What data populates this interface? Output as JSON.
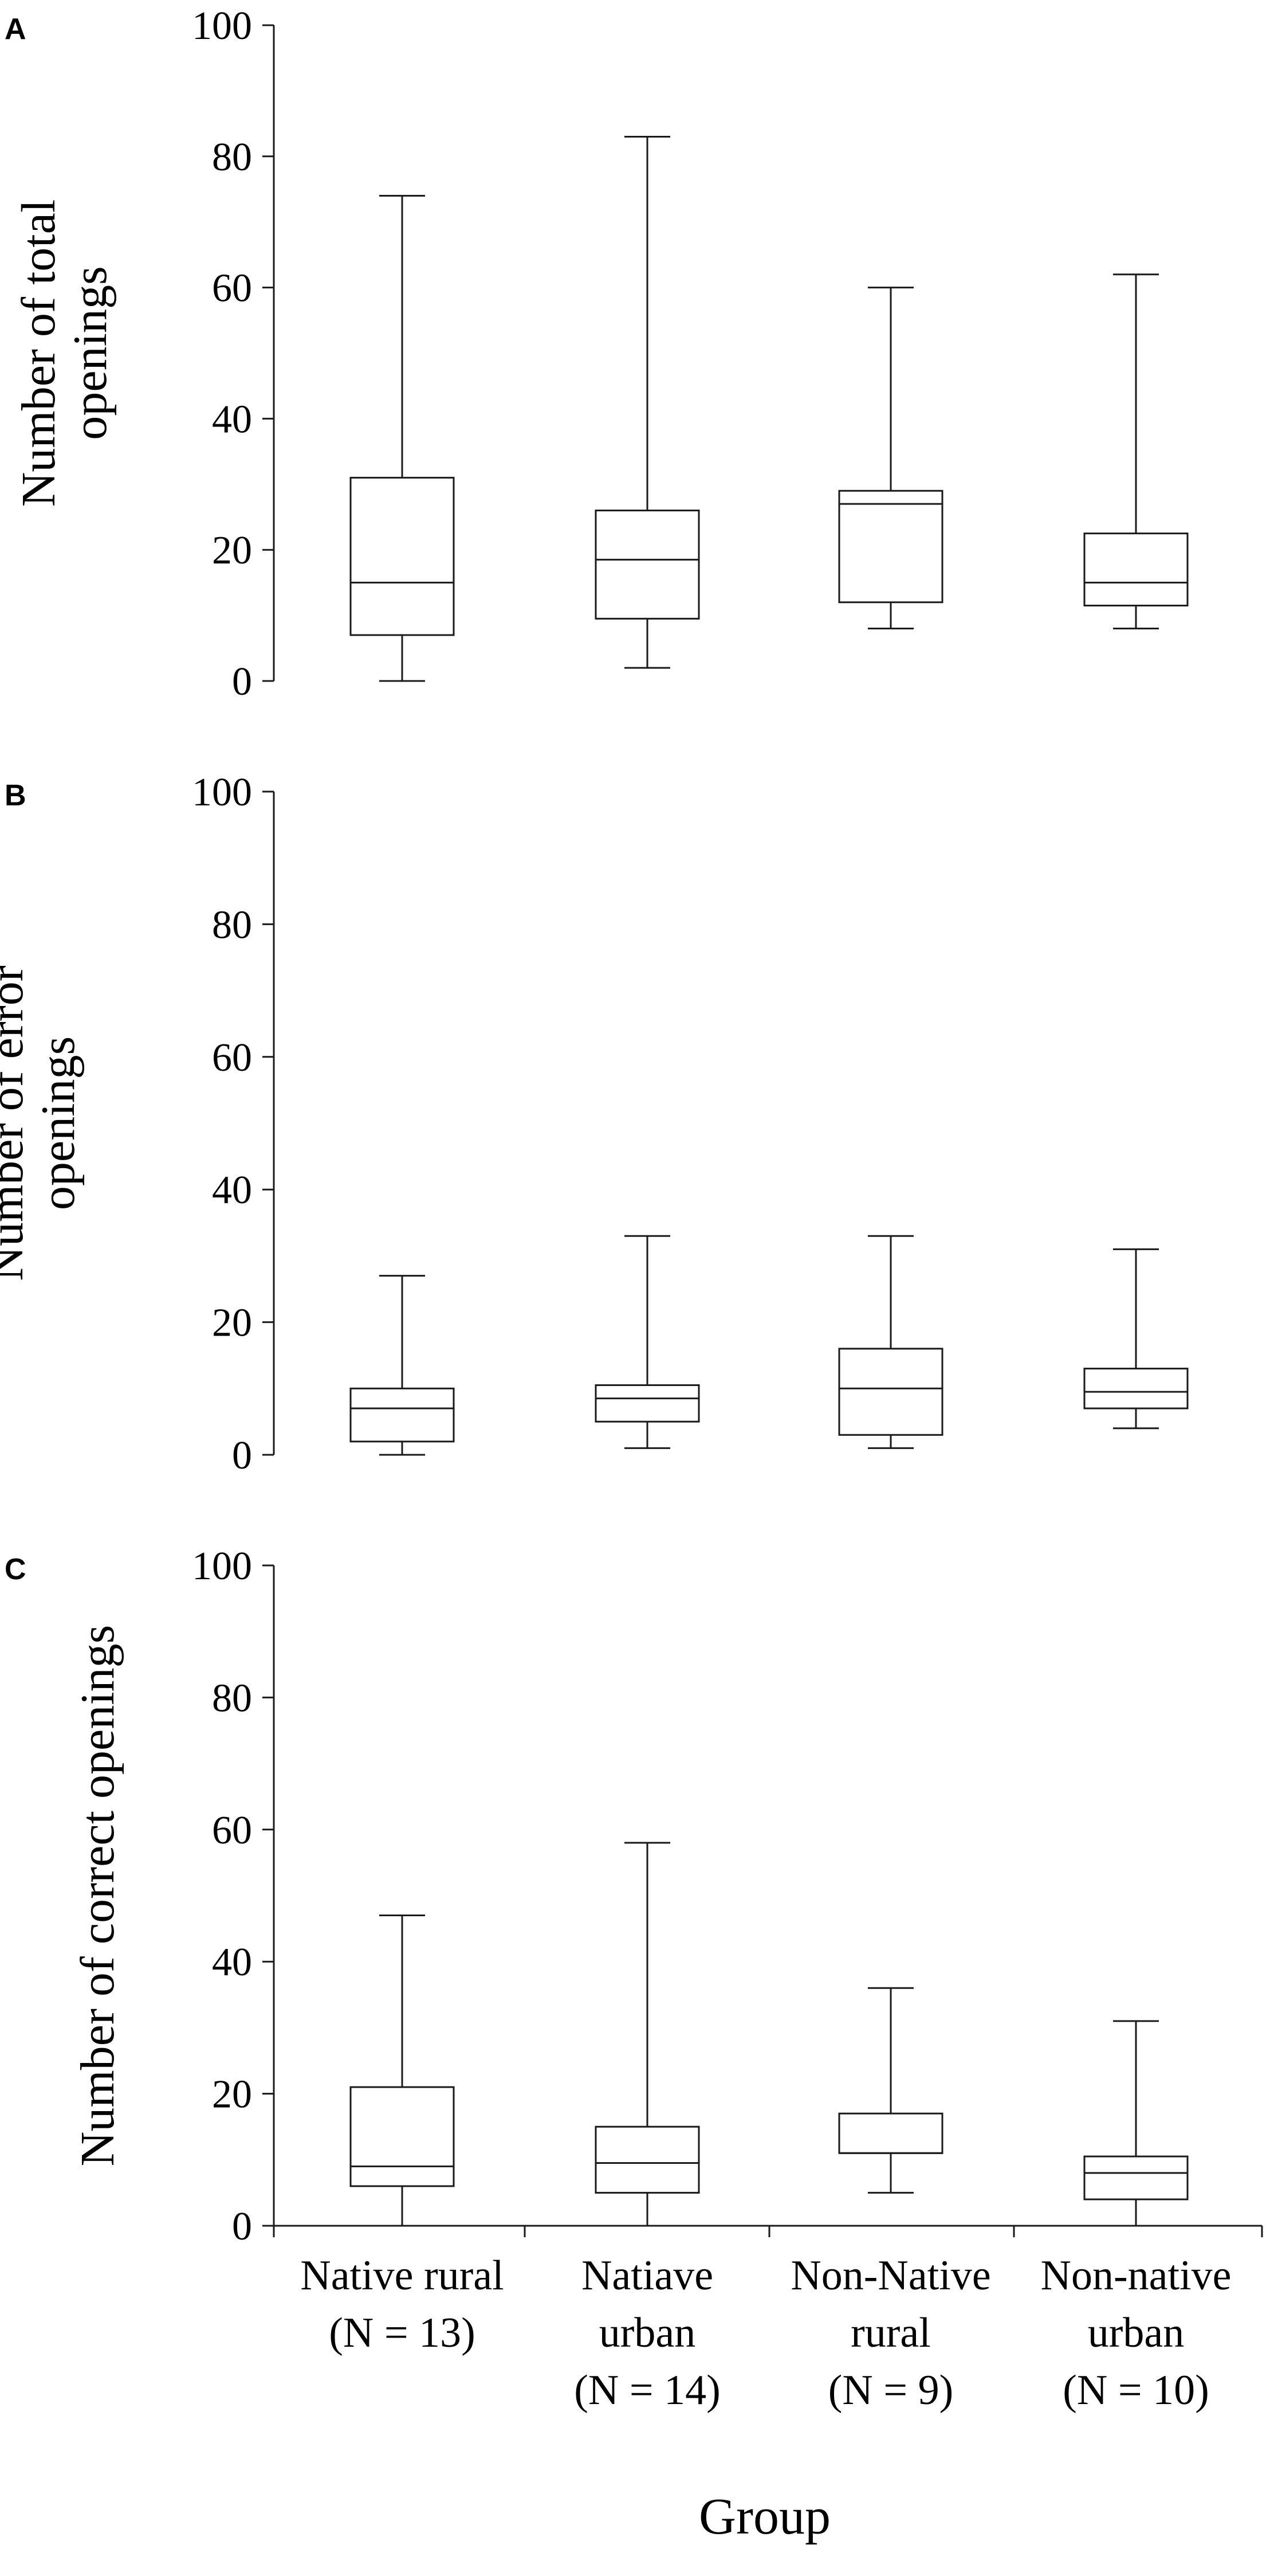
{
  "chart_data": [
    {
      "type": "box",
      "panel_label": "A",
      "ylabel_lines": [
        "Number of total",
        "openings"
      ],
      "ylim": [
        0,
        100
      ],
      "yticks": [
        0,
        20,
        40,
        60,
        80,
        100
      ],
      "boxes": [
        {
          "min": 0,
          "q1": 7,
          "median": 15,
          "q3": 31,
          "max": 74
        },
        {
          "min": 2,
          "q1": 9.5,
          "median": 18.5,
          "q3": 26,
          "max": 83
        },
        {
          "min": 8,
          "q1": 12,
          "median": 27,
          "q3": 29,
          "max": 60
        },
        {
          "min": 8,
          "q1": 11.5,
          "median": 15,
          "q3": 22.5,
          "max": 62
        }
      ]
    },
    {
      "type": "box",
      "panel_label": "B",
      "ylabel_lines": [
        "Number of error",
        "openings"
      ],
      "ylim": [
        0,
        100
      ],
      "yticks": [
        0,
        20,
        40,
        60,
        80,
        100
      ],
      "boxes": [
        {
          "min": 0,
          "q1": 2,
          "median": 7,
          "q3": 10,
          "max": 27
        },
        {
          "min": 1,
          "q1": 5,
          "median": 8.5,
          "q3": 10.5,
          "max": 33
        },
        {
          "min": 1,
          "q1": 3,
          "median": 10,
          "q3": 16,
          "max": 33
        },
        {
          "min": 4,
          "q1": 7,
          "median": 9.5,
          "q3": 13,
          "max": 31
        }
      ]
    },
    {
      "type": "box",
      "panel_label": "C",
      "ylabel_lines": [
        "Number of correct openings"
      ],
      "ylim": [
        0,
        100
      ],
      "yticks": [
        0,
        20,
        40,
        60,
        80,
        100
      ],
      "boxes": [
        {
          "min": 0,
          "q1": 6,
          "median": 9,
          "q3": 21,
          "max": 47
        },
        {
          "min": 0,
          "q1": 5,
          "median": 9.5,
          "q3": 15,
          "max": 58
        },
        {
          "min": 5,
          "q1": 11,
          "median": 11,
          "q3": 17,
          "max": 36
        },
        {
          "min": 0,
          "q1": 4,
          "median": 8,
          "q3": 10.5,
          "max": 31
        }
      ]
    }
  ],
  "categories": [
    [
      "Native rural",
      "(N = 13)"
    ],
    [
      "Natiave",
      "urban",
      "(N = 14)"
    ],
    [
      "Non-Native",
      "rural",
      "(N = 9)"
    ],
    [
      "Non-native",
      "urban",
      "(N = 10)"
    ]
  ],
  "xlabel": "Group"
}
